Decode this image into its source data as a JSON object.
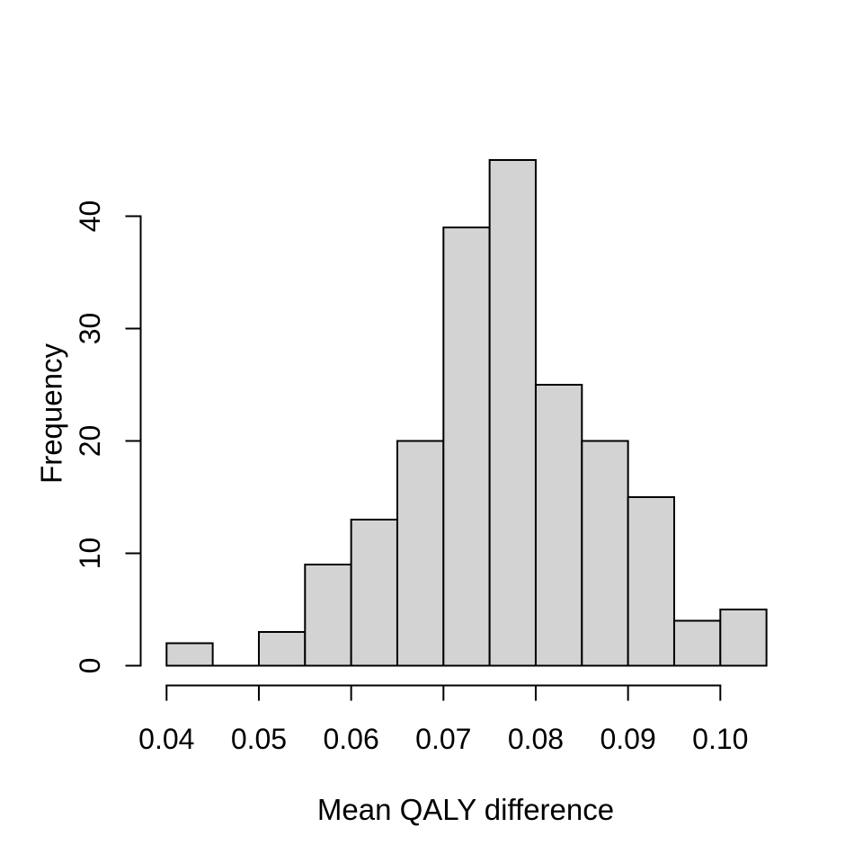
{
  "chart_data": {
    "type": "bar",
    "subtype": "histogram",
    "title": "",
    "xlabel": "Mean QALY difference",
    "ylabel": "Frequency",
    "bins": {
      "start": 0.04,
      "bin_width": 0.005,
      "counts": [
        2,
        0,
        3,
        9,
        13,
        20,
        39,
        45,
        25,
        20,
        15,
        4,
        5
      ]
    },
    "x_tick_labels": [
      "0.04",
      "0.05",
      "0.06",
      "0.07",
      "0.08",
      "0.09",
      "0.10"
    ],
    "x_tick_values": [
      0.04,
      0.05,
      0.06,
      0.07,
      0.08,
      0.09,
      0.1
    ],
    "y_tick_labels": [
      "0",
      "10",
      "20",
      "30",
      "40"
    ],
    "y_tick_values": [
      0,
      10,
      20,
      30,
      40
    ],
    "xlim": [
      0.04,
      0.105
    ],
    "ylim": [
      0,
      45
    ],
    "grid": false,
    "legend": null,
    "colors": {
      "bar_fill": "#d3d3d3",
      "bar_stroke": "#000000",
      "axis": "#000000",
      "text": "#000000",
      "background": "#ffffff"
    }
  }
}
